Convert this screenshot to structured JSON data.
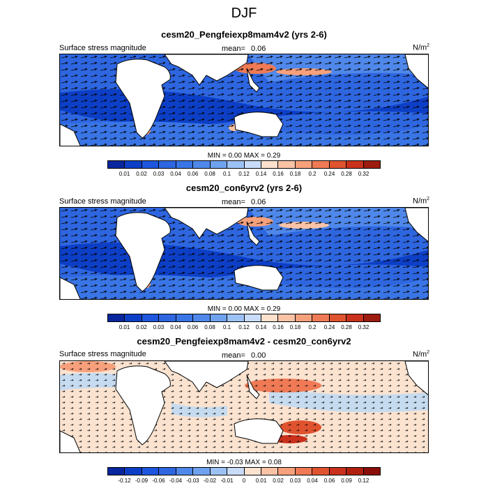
{
  "figure": {
    "title": "DJF",
    "colors": {
      "land": "#ffffff",
      "strong_positive": "#d7301f",
      "weak_positive": "#fbe3d0",
      "weak_negative": "#c6dbef",
      "background_blue": "#2e66e0"
    }
  },
  "panels": [
    {
      "title": "cesm20_Pengfeiexp8mam4v2 (yrs 2-6)",
      "left_label": "Surface stress magnitude",
      "mean_label": "mean=",
      "mean_value": "0.06",
      "units": "N/m",
      "units_exp": "2",
      "minmax": "MIN =   0.00 MAX =   0.29"
    },
    {
      "title": "cesm20_con6yrv2 (yrs 2-6)",
      "left_label": "Surface stress magnitude",
      "mean_label": "mean=",
      "mean_value": "0.06",
      "units": "N/m",
      "units_exp": "2",
      "minmax": "MIN =   0.00 MAX =   0.29"
    },
    {
      "title": "cesm20_Pengfeiexp8mam4v2 - cesm20_con6yrv2",
      "left_label": "Surface stress magnitude",
      "mean_label": "mean=",
      "mean_value": "0.00",
      "units": "N/m",
      "units_exp": "2",
      "minmax": "MIN =  -0.03 MAX =   0.08"
    }
  ],
  "colorbars": {
    "absolute": {
      "labels": [
        "0.01",
        "0.02",
        "0.03",
        "0.04",
        "0.06",
        "0.08",
        "0.1",
        "0.12",
        "0.14",
        "0.16",
        "0.18",
        "0.2",
        "0.24",
        "0.28",
        "0.32"
      ],
      "colors": [
        "#08279e",
        "#0d3fc6",
        "#1f56de",
        "#2e66e0",
        "#3a75e6",
        "#4f88ea",
        "#6fa2ee",
        "#9cc1f4",
        "#c8dcf8",
        "#fbe1ce",
        "#fac3a6",
        "#f7a07c",
        "#ef7a55",
        "#e0532f",
        "#c9311c",
        "#9e1b10"
      ]
    },
    "difference": {
      "labels": [
        "-0.12",
        "-0.09",
        "-0.06",
        "-0.04",
        "-0.03",
        "-0.02",
        "-0.01",
        "0",
        "0.01",
        "0.02",
        "0.03",
        "0.04",
        "0.06",
        "0.09",
        "0.12"
      ],
      "colors": [
        "#08279e",
        "#0d3fc6",
        "#1f56de",
        "#2e66e0",
        "#4f88ea",
        "#6fa2ee",
        "#9cc1f4",
        "#c8dcf8",
        "#fbe3d0",
        "#fac3a6",
        "#f7a07c",
        "#ef7a55",
        "#e0532f",
        "#c9311c",
        "#b0200f",
        "#8a0f0a"
      ]
    }
  }
}
